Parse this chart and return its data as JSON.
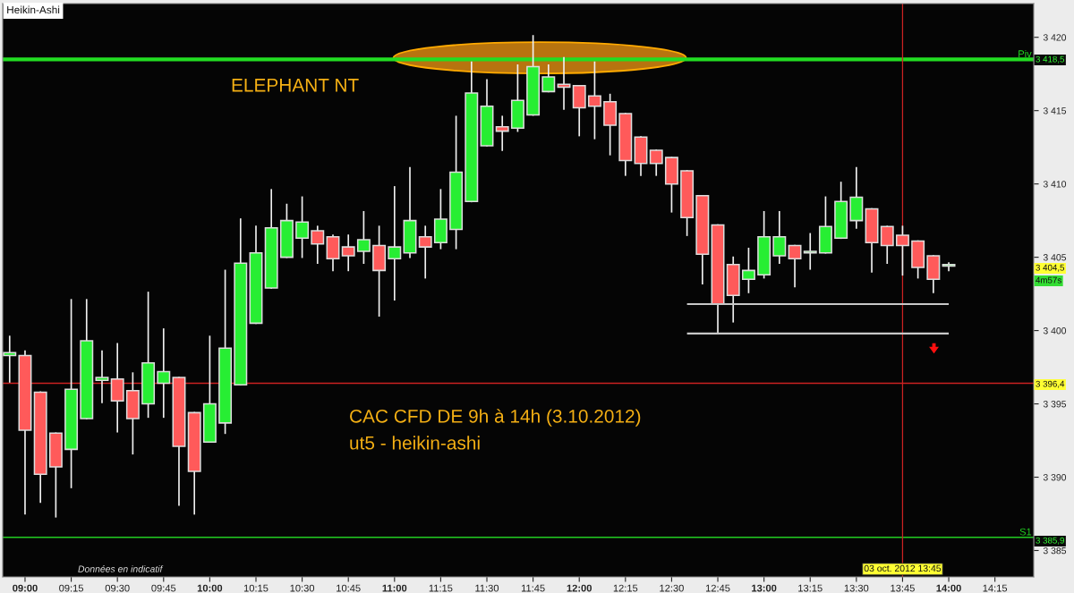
{
  "chart_data": {
    "type": "candlestick",
    "title": "Heikin-Ashi",
    "x": [
      8.9167,
      9.0,
      9.0833,
      9.1667,
      9.25,
      9.3333,
      9.4167,
      9.5,
      9.5833,
      9.6667,
      9.75,
      9.8333,
      9.9167,
      10.0,
      10.0833,
      10.1667,
      10.25,
      10.3333,
      10.4167,
      10.5,
      10.5833,
      10.6667,
      10.75,
      10.8333,
      10.9167,
      11.0,
      11.0833,
      11.1667,
      11.25,
      11.3333,
      11.4167,
      11.5,
      11.5833,
      11.6667,
      11.75,
      11.8333,
      11.9167,
      12.0,
      12.0833,
      12.1667,
      12.25,
      12.3333,
      12.4167,
      12.5,
      12.5833,
      12.6667,
      12.75,
      12.8333,
      12.9167,
      13.0,
      13.0833,
      13.1667,
      13.25,
      13.3333,
      13.4167,
      13.5,
      13.5833,
      13.6667,
      13.75,
      13.8333,
      13.9167,
      14.0
    ],
    "ohlc": [
      [
        3398.3,
        3399.6,
        3396.5,
        3398.5
      ],
      [
        3398.3,
        3398.6,
        3387.5,
        3393.2
      ],
      [
        3395.8,
        3395.8,
        3388.3,
        3390.2
      ],
      [
        3393.0,
        3393.0,
        3387.3,
        3390.7
      ],
      [
        3391.9,
        3402.1,
        3389.3,
        3396.0
      ],
      [
        3394.0,
        3402.1,
        3394.0,
        3399.3
      ],
      [
        3396.6,
        3398.6,
        3395.1,
        3396.8
      ],
      [
        3396.7,
        3399.1,
        3393.1,
        3395.2
      ],
      [
        3395.9,
        3397.1,
        3391.6,
        3394.0
      ],
      [
        3395.0,
        3402.6,
        3394.1,
        3397.8
      ],
      [
        3396.4,
        3400.1,
        3394.1,
        3397.2
      ],
      [
        3396.8,
        3396.8,
        3388.1,
        3392.1
      ],
      [
        3394.4,
        3394.4,
        3387.5,
        3390.4
      ],
      [
        3392.4,
        3399.6,
        3392.4,
        3395.0
      ],
      [
        3393.7,
        3404.1,
        3393.0,
        3398.8
      ],
      [
        3396.3,
        3407.6,
        3396.3,
        3404.6
      ],
      [
        3400.5,
        3407.1,
        3400.5,
        3405.3
      ],
      [
        3402.9,
        3409.6,
        3402.9,
        3407.0
      ],
      [
        3405.0,
        3408.6,
        3405.0,
        3407.5
      ],
      [
        3406.3,
        3409.1,
        3405.0,
        3407.4
      ],
      [
        3406.8,
        3407.1,
        3404.6,
        3405.9
      ],
      [
        3406.4,
        3406.5,
        3404.1,
        3404.9
      ],
      [
        3405.7,
        3406.5,
        3404.1,
        3405.1
      ],
      [
        3405.4,
        3408.1,
        3404.6,
        3406.2
      ],
      [
        3405.8,
        3407.1,
        3401.0,
        3404.1
      ],
      [
        3404.9,
        3409.8,
        3402.1,
        3405.7
      ],
      [
        3405.3,
        3411.1,
        3405.0,
        3407.5
      ],
      [
        3406.4,
        3407.1,
        3403.6,
        3405.7
      ],
      [
        3406.0,
        3409.6,
        3405.6,
        3407.6
      ],
      [
        3406.9,
        3414.6,
        3405.6,
        3410.8
      ],
      [
        3408.8,
        3418.3,
        3408.8,
        3416.2
      ],
      [
        3412.6,
        3417.1,
        3412.6,
        3415.3
      ],
      [
        3413.9,
        3414.6,
        3412.3,
        3413.6
      ],
      [
        3413.8,
        3418.1,
        3413.6,
        3415.7
      ],
      [
        3414.7,
        3420.1,
        3414.7,
        3418.0
      ],
      [
        3416.3,
        3418.1,
        3416.3,
        3417.3
      ],
      [
        3416.8,
        3418.6,
        3415.1,
        3416.6
      ],
      [
        3416.7,
        3416.7,
        3413.3,
        3415.2
      ],
      [
        3416.0,
        3418.3,
        3413.1,
        3415.3
      ],
      [
        3415.6,
        3416.1,
        3412.0,
        3414.0
      ],
      [
        3414.8,
        3414.8,
        3410.6,
        3411.6
      ],
      [
        3413.2,
        3413.2,
        3410.6,
        3411.4
      ],
      [
        3412.3,
        3412.3,
        3410.6,
        3411.4
      ],
      [
        3411.8,
        3411.8,
        3408.1,
        3410.0
      ],
      [
        3410.9,
        3410.9,
        3406.5,
        3407.7
      ],
      [
        3409.2,
        3409.2,
        3403.2,
        3405.2
      ],
      [
        3407.2,
        3407.2,
        3399.8,
        3401.8
      ],
      [
        3404.5,
        3405.0,
        3400.6,
        3402.4
      ],
      [
        3403.5,
        3405.6,
        3402.6,
        3404.1
      ],
      [
        3403.8,
        3408.1,
        3403.6,
        3406.4
      ],
      [
        3405.1,
        3408.1,
        3404.6,
        3406.4
      ],
      [
        3405.8,
        3405.8,
        3403.0,
        3404.9
      ],
      [
        3405.3,
        3406.6,
        3404.2,
        3405.4
      ],
      [
        3405.3,
        3409.1,
        3405.3,
        3407.1
      ],
      [
        3406.3,
        3410.1,
        3406.3,
        3408.8
      ],
      [
        3407.5,
        3411.1,
        3407.0,
        3409.1
      ],
      [
        3408.3,
        3408.3,
        3404.0,
        3406.0
      ],
      [
        3407.1,
        3407.1,
        3404.6,
        3405.8
      ],
      [
        3406.5,
        3407.1,
        3403.8,
        3405.8
      ],
      [
        3406.1,
        3406.1,
        3403.6,
        3404.3
      ],
      [
        3405.1,
        3405.1,
        3402.6,
        3403.5
      ],
      [
        3404.4,
        3404.6,
        3404.1,
        3404.5
      ]
    ],
    "series": [
      {
        "type": "line",
        "values": [
          null,
          null,
          null,
          null,
          null,
          null,
          null,
          null,
          null,
          null,
          null,
          null,
          null,
          null,
          null,
          null,
          null,
          null,
          null,
          null,
          null,
          null,
          null,
          null,
          null,
          null,
          null,
          null,
          null,
          null,
          null,
          null,
          null,
          null,
          null,
          null,
          null,
          null,
          null,
          null,
          null,
          null,
          null,
          null,
          3401.8,
          3401.8,
          3401.8,
          3401.8,
          3401.8,
          3401.8,
          3401.8,
          3401.8,
          3401.8,
          3401.8,
          3401.8,
          3401.8,
          3401.8,
          3401.8,
          3401.8,
          3401.8,
          3401.8,
          3401.8
        ],
        "color": "#c8c8c8"
      },
      {
        "type": "line",
        "values": [
          null,
          null,
          null,
          null,
          null,
          null,
          null,
          null,
          null,
          null,
          null,
          null,
          null,
          null,
          null,
          null,
          null,
          null,
          null,
          null,
          null,
          null,
          null,
          null,
          null,
          null,
          null,
          null,
          null,
          null,
          null,
          null,
          null,
          null,
          null,
          null,
          null,
          null,
          null,
          null,
          null,
          null,
          null,
          null,
          3399.8,
          3399.8,
          3399.8,
          3399.8,
          3399.8,
          3399.8,
          3399.8,
          3399.8,
          3399.8,
          3399.8,
          3399.8,
          3399.8,
          3399.8,
          3399.8,
          3399.8,
          3399.8,
          3399.8,
          3399.8
        ],
        "color": "#c8c8c8"
      }
    ],
    "ref_lines": [
      {
        "axis": "y",
        "value": 3418.5,
        "label": "Piv",
        "color": "#22dd22"
      },
      {
        "axis": "y",
        "value": 3385.9,
        "label": "S1",
        "color": "#22cc22"
      },
      {
        "axis": "y",
        "value": 3396.4,
        "color": "#cc2222"
      },
      {
        "axis": "x",
        "value": 13.75,
        "color": "#cc2222"
      }
    ],
    "annotations": [
      "ELEPHANT NT",
      "CAC CFD DE 9h à 14h (3.10.2012)",
      "ut5 - heikin-ashi",
      "Données en indicatif",
      "3 418,5",
      "3 404,5",
      "4m57s",
      "3 396,4",
      "3 385,9",
      {
        "text": "03 oct. 2012 13:45",
        "x": 13.75
      }
    ],
    "xlim": [
      8.879,
      14.46
    ],
    "xticks": [
      {
        "value": 9.0,
        "label": "09:00"
      },
      {
        "value": 9.25,
        "label": "09:15"
      },
      {
        "value": 9.5,
        "label": "09:30"
      },
      {
        "value": 9.75,
        "label": "09:45"
      },
      {
        "value": 10.0,
        "label": "10:00"
      },
      {
        "value": 10.25,
        "label": "10:15"
      },
      {
        "value": 10.5,
        "label": "10:30"
      },
      {
        "value": 10.75,
        "label": "10:45"
      },
      {
        "value": 11.0,
        "label": "11:00"
      },
      {
        "value": 11.25,
        "label": "11:15"
      },
      {
        "value": 11.5,
        "label": "11:30"
      },
      {
        "value": 11.75,
        "label": "11:45"
      },
      {
        "value": 12.0,
        "label": "12:00"
      },
      {
        "value": 12.25,
        "label": "12:15"
      },
      {
        "value": 12.5,
        "label": "12:30"
      },
      {
        "value": 12.75,
        "label": "12:45"
      },
      {
        "value": 13.0,
        "label": "13:00"
      },
      {
        "value": 13.25,
        "label": "13:15"
      },
      {
        "value": 13.5,
        "label": "13:30"
      },
      {
        "value": 13.75,
        "label": "13:45"
      },
      {
        "value": 14.0,
        "label": "14:00"
      },
      {
        "value": 14.25,
        "label": "14:15"
      }
    ],
    "ylim": [
      3383.2,
      3422.3
    ],
    "yticks": [
      {
        "value": 3385,
        "label": "3 385"
      },
      {
        "value": 3390,
        "label": "3 390"
      },
      {
        "value": 3395,
        "label": "3 395"
      },
      {
        "value": 3400,
        "label": "3 400"
      },
      {
        "value": 3405,
        "label": "3 405"
      },
      {
        "value": 3410,
        "label": "3 410"
      },
      {
        "value": 3415,
        "label": "3 415"
      },
      {
        "value": 3420,
        "label": "3 420"
      }
    ],
    "grid": false,
    "legend": false
  }
}
